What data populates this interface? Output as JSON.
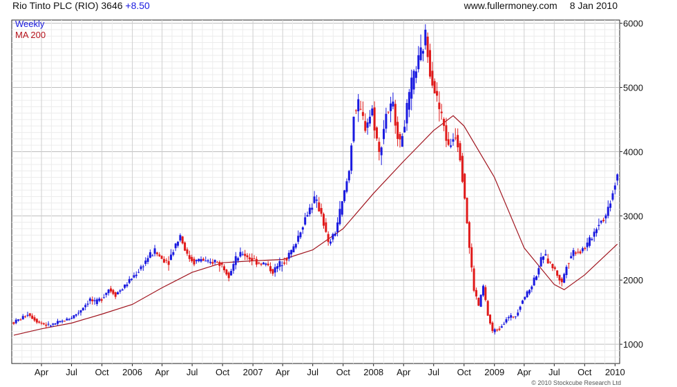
{
  "header": {
    "title": "Rio Tinto PLC (RIO) 3646",
    "change": "+8.50",
    "site": "www.fullermoney.com",
    "date": "8 Jan 2010"
  },
  "legend": {
    "weekly": "Weekly",
    "ma": "MA 200"
  },
  "copyright": "© 2010 Stockcube Research Ltd",
  "colors": {
    "up": "#1a1ae0",
    "down": "#e01a1a",
    "ma": "#a0141e",
    "grid": "#d8d8d8",
    "axis": "#222222"
  },
  "chart_data": {
    "type": "candlestick-weekly",
    "x_axis_type": "time",
    "x_range": [
      "2005-01-01",
      "2010-01-15"
    ],
    "y_range": [
      700,
      6050
    ],
    "y_ticks": [
      1000,
      2000,
      3000,
      4000,
      5000,
      6000
    ],
    "y_axis_side": "right",
    "grid": true,
    "x_ticks": [
      {
        "label": "Apr",
        "date": "2005-04-01"
      },
      {
        "label": "Jul",
        "date": "2005-07-01"
      },
      {
        "label": "Oct",
        "date": "2005-10-01"
      },
      {
        "label": "2006",
        "date": "2006-01-01"
      },
      {
        "label": "Apr",
        "date": "2006-04-01"
      },
      {
        "label": "Jul",
        "date": "2006-07-01"
      },
      {
        "label": "Oct",
        "date": "2006-10-01"
      },
      {
        "label": "2007",
        "date": "2007-01-01"
      },
      {
        "label": "Apr",
        "date": "2007-04-01"
      },
      {
        "label": "Jul",
        "date": "2007-07-01"
      },
      {
        "label": "Oct",
        "date": "2007-10-01"
      },
      {
        "label": "2008",
        "date": "2008-01-01"
      },
      {
        "label": "Apr",
        "date": "2008-04-01"
      },
      {
        "label": "Jul",
        "date": "2008-07-01"
      },
      {
        "label": "Oct",
        "date": "2008-10-01"
      },
      {
        "label": "2009",
        "date": "2009-01-01"
      },
      {
        "label": "Apr",
        "date": "2009-04-01"
      },
      {
        "label": "Jul",
        "date": "2009-07-01"
      },
      {
        "label": "Oct",
        "date": "2009-10-01"
      },
      {
        "label": "2010",
        "date": "2010-01-01"
      }
    ],
    "price_path": [
      [
        "2005-01-07",
        1340
      ],
      [
        "2005-02-04",
        1420
      ],
      [
        "2005-02-18",
        1480
      ],
      [
        "2005-03-11",
        1390
      ],
      [
        "2005-03-25",
        1340
      ],
      [
        "2005-04-22",
        1290
      ],
      [
        "2005-05-13",
        1320
      ],
      [
        "2005-06-10",
        1370
      ],
      [
        "2005-07-01",
        1420
      ],
      [
        "2005-07-22",
        1500
      ],
      [
        "2005-08-12",
        1620
      ],
      [
        "2005-08-26",
        1700
      ],
      [
        "2005-09-09",
        1640
      ],
      [
        "2005-09-30",
        1720
      ],
      [
        "2005-10-21",
        1860
      ],
      [
        "2005-11-11",
        1780
      ],
      [
        "2005-12-02",
        1870
      ],
      [
        "2005-12-23",
        1990
      ],
      [
        "2006-01-20",
        2150
      ],
      [
        "2006-02-17",
        2350
      ],
      [
        "2006-03-10",
        2450
      ],
      [
        "2006-03-31",
        2330
      ],
      [
        "2006-04-21",
        2300
      ],
      [
        "2006-05-12",
        2560
      ],
      [
        "2006-05-26",
        2700
      ],
      [
        "2006-06-16",
        2380
      ],
      [
        "2006-07-07",
        2280
      ],
      [
        "2006-07-28",
        2330
      ],
      [
        "2006-08-18",
        2250
      ],
      [
        "2006-09-08",
        2300
      ],
      [
        "2006-09-29",
        2230
      ],
      [
        "2006-10-20",
        2090
      ],
      [
        "2006-11-10",
        2320
      ],
      [
        "2006-12-01",
        2420
      ],
      [
        "2006-12-22",
        2340
      ],
      [
        "2007-01-19",
        2270
      ],
      [
        "2007-02-09",
        2250
      ],
      [
        "2007-03-02",
        2130
      ],
      [
        "2007-03-23",
        2250
      ],
      [
        "2007-04-13",
        2350
      ],
      [
        "2007-05-04",
        2500
      ],
      [
        "2007-05-25",
        2780
      ],
      [
        "2007-06-15",
        3050
      ],
      [
        "2007-07-06",
        3250
      ],
      [
        "2007-07-27",
        3050
      ],
      [
        "2007-08-17",
        2550
      ],
      [
        "2007-09-07",
        2750
      ],
      [
        "2007-09-28",
        3200
      ],
      [
        "2007-10-19",
        3700
      ],
      [
        "2007-11-02",
        4600
      ],
      [
        "2007-11-16",
        4700
      ],
      [
        "2007-12-07",
        4400
      ],
      [
        "2007-12-28",
        4650
      ],
      [
        "2008-01-18",
        3950
      ],
      [
        "2008-02-08",
        4600
      ],
      [
        "2008-02-29",
        4700
      ],
      [
        "2008-03-21",
        4100
      ],
      [
        "2008-04-11",
        4650
      ],
      [
        "2008-05-02",
        5200
      ],
      [
        "2008-05-23",
        5500
      ],
      [
        "2008-06-06",
        5800
      ],
      [
        "2008-06-20",
        5300
      ],
      [
        "2008-07-11",
        4800
      ],
      [
        "2008-08-01",
        4400
      ],
      [
        "2008-08-15",
        4050
      ],
      [
        "2008-09-05",
        4300
      ],
      [
        "2008-09-19",
        3950
      ],
      [
        "2008-10-03",
        3300
      ],
      [
        "2008-10-17",
        2500
      ],
      [
        "2008-10-31",
        1850
      ],
      [
        "2008-11-14",
        1600
      ],
      [
        "2008-11-28",
        1900
      ],
      [
        "2008-12-12",
        1450
      ],
      [
        "2008-12-26",
        1200
      ],
      [
        "2009-01-16",
        1250
      ],
      [
        "2009-02-06",
        1400
      ],
      [
        "2009-03-06",
        1450
      ],
      [
        "2009-03-27",
        1700
      ],
      [
        "2009-04-17",
        1850
      ],
      [
        "2009-05-08",
        2100
      ],
      [
        "2009-05-29",
        2400
      ],
      [
        "2009-06-12",
        2300
      ],
      [
        "2009-07-03",
        2150
      ],
      [
        "2009-07-24",
        1950
      ],
      [
        "2009-08-07",
        2250
      ],
      [
        "2009-08-28",
        2450
      ],
      [
        "2009-09-18",
        2450
      ],
      [
        "2009-10-09",
        2550
      ],
      [
        "2009-10-30",
        2750
      ],
      [
        "2009-11-13",
        2900
      ],
      [
        "2009-12-04",
        3000
      ],
      [
        "2009-12-18",
        3250
      ],
      [
        "2010-01-08",
        3646
      ]
    ],
    "moving_average": {
      "name": "MA 200",
      "points": [
        [
          "2005-01-07",
          1140
        ],
        [
          "2005-04-01",
          1240
        ],
        [
          "2005-07-01",
          1330
        ],
        [
          "2005-10-01",
          1470
        ],
        [
          "2006-01-01",
          1620
        ],
        [
          "2006-04-01",
          1880
        ],
        [
          "2006-07-01",
          2120
        ],
        [
          "2006-10-01",
          2270
        ],
        [
          "2007-01-01",
          2300
        ],
        [
          "2007-04-01",
          2320
        ],
        [
          "2007-07-01",
          2470
        ],
        [
          "2007-10-01",
          2800
        ],
        [
          "2008-01-01",
          3350
        ],
        [
          "2008-04-01",
          3850
        ],
        [
          "2008-07-01",
          4330
        ],
        [
          "2008-08-29",
          4560
        ],
        [
          "2008-10-01",
          4400
        ],
        [
          "2009-01-01",
          3600
        ],
        [
          "2009-04-01",
          2500
        ],
        [
          "2009-07-01",
          1930
        ],
        [
          "2009-07-31",
          1850
        ],
        [
          "2009-10-01",
          2080
        ],
        [
          "2010-01-08",
          2560
        ]
      ]
    }
  }
}
